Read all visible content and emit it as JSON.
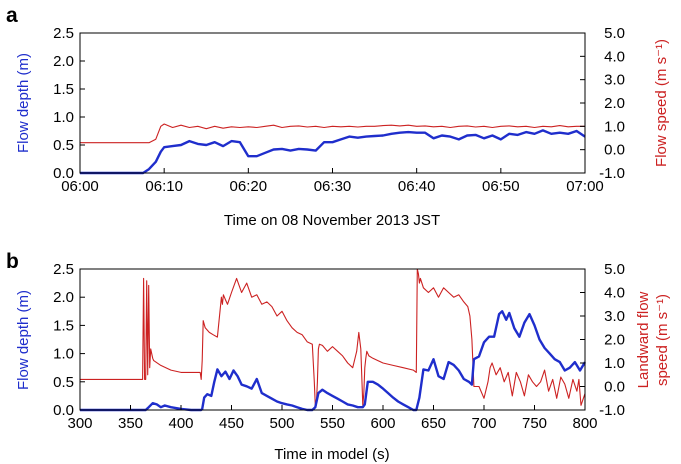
{
  "colors": {
    "depth": "#1f2ecc",
    "speed": "#cc2222",
    "axis": "#000000"
  },
  "chart_data": [
    {
      "panel": "a",
      "type": "line",
      "xlabel": "Time on 08 November 2013 JST",
      "ylabel_left": "Flow depth (m)",
      "ylabel_right": "Flow speed (m s⁻¹)",
      "x_ticks": [
        "06:00",
        "06:10",
        "06:20",
        "06:30",
        "06:40",
        "06:50",
        "07:00"
      ],
      "xlim": [
        0,
        60
      ],
      "ylim_left": [
        0,
        2.5
      ],
      "ylim_right": [
        -1.0,
        5.0
      ],
      "yticks_left": [
        "0.0",
        "0.5",
        "1.0",
        "1.5",
        "2.0",
        "2.5"
      ],
      "yticks_right": [
        "-1.0",
        "0.0",
        "1.0",
        "2.0",
        "3.0",
        "4.0",
        "5.0"
      ],
      "grid": false,
      "series": [
        {
          "axis": "left",
          "color": "#1f2ecc",
          "x": [
            0,
            7.5,
            8.2,
            9.0,
            9.6,
            10.0,
            11.0,
            12.0,
            13.0,
            14.0,
            15.0,
            16.0,
            17.0,
            18.0,
            19.0,
            20.0,
            21.0,
            22.0,
            23.0,
            24.0,
            25.0,
            26.0,
            27.0,
            28.0,
            29.0,
            30.0,
            31.0,
            32.0,
            33.0,
            34.0,
            35.0,
            36.0,
            37.0,
            38.0,
            39.0,
            40.0,
            41.0,
            42.0,
            43.0,
            44.0,
            45.0,
            46.0,
            47.0,
            48.0,
            49.0,
            50.0,
            51.0,
            52.0,
            53.0,
            54.0,
            55.0,
            56.0,
            57.0,
            58.0,
            59.0,
            60.0
          ],
          "y": [
            0.0,
            0.0,
            0.07,
            0.2,
            0.38,
            0.46,
            0.48,
            0.5,
            0.57,
            0.52,
            0.5,
            0.55,
            0.48,
            0.57,
            0.55,
            0.3,
            0.3,
            0.36,
            0.42,
            0.43,
            0.4,
            0.43,
            0.42,
            0.4,
            0.55,
            0.55,
            0.6,
            0.65,
            0.63,
            0.65,
            0.66,
            0.67,
            0.7,
            0.72,
            0.73,
            0.72,
            0.72,
            0.62,
            0.67,
            0.65,
            0.6,
            0.67,
            0.68,
            0.62,
            0.67,
            0.6,
            0.7,
            0.68,
            0.73,
            0.7,
            0.76,
            0.7,
            0.72,
            0.7,
            0.75,
            0.65
          ]
        },
        {
          "axis": "right",
          "color": "#cc2222",
          "x": [
            0,
            7.5,
            8.2,
            9.0,
            9.6,
            10.0,
            11.0,
            12.0,
            13.0,
            14.0,
            15.0,
            16.0,
            17.0,
            18.0,
            19.0,
            20.0,
            21.0,
            22.0,
            23.0,
            24.0,
            25.0,
            26.0,
            27.0,
            28.0,
            29.0,
            30.0,
            31.0,
            32.0,
            33.0,
            34.0,
            35.0,
            36.0,
            37.0,
            38.0,
            39.0,
            40.0,
            41.0,
            42.0,
            43.0,
            44.0,
            45.0,
            46.0,
            47.0,
            48.0,
            49.0,
            50.0,
            51.0,
            52.0,
            53.0,
            54.0,
            55.0,
            56.0,
            57.0,
            58.0,
            59.0,
            60.0
          ],
          "y": [
            0.3,
            0.3,
            0.3,
            0.45,
            1.0,
            1.1,
            0.95,
            1.05,
            0.95,
            1.0,
            0.9,
            1.0,
            0.92,
            0.98,
            0.95,
            0.98,
            0.95,
            1.0,
            1.05,
            0.95,
            1.0,
            1.02,
            0.97,
            1.0,
            0.95,
            1.0,
            0.98,
            1.0,
            0.97,
            1.0,
            1.0,
            1.03,
            1.05,
            1.02,
            1.05,
            1.0,
            1.02,
            0.98,
            1.0,
            0.95,
            1.0,
            1.02,
            0.97,
            1.0,
            0.95,
            1.0,
            1.02,
            0.98,
            1.0,
            0.95,
            1.0,
            0.98,
            1.03,
            0.98,
            1.0,
            1.0
          ]
        }
      ]
    },
    {
      "panel": "b",
      "type": "line",
      "xlabel": "Time in model (s)",
      "ylabel_left": "Flow depth (m)",
      "ylabel_right": [
        "Landward flow",
        "speed (m s⁻¹)"
      ],
      "x_ticks": [
        "300",
        "350",
        "400",
        "450",
        "500",
        "550",
        "600",
        "650",
        "700",
        "750",
        "800"
      ],
      "xlim": [
        300,
        800
      ],
      "ylim_left": [
        0,
        2.5
      ],
      "ylim_right": [
        -1.0,
        5.0
      ],
      "yticks_left": [
        "0.0",
        "0.5",
        "1.0",
        "1.5",
        "2.0",
        "2.5"
      ],
      "yticks_right": [
        "-1.0",
        "0.0",
        "1.0",
        "2.0",
        "3.0",
        "4.0",
        "5.0"
      ],
      "grid": false,
      "series": [
        {
          "axis": "left",
          "color": "#1f2ecc",
          "x": [
            300,
            365,
            368,
            372,
            376,
            380,
            384,
            390,
            400,
            410,
            420,
            421,
            423,
            426,
            430,
            433,
            436,
            440,
            444,
            448,
            452,
            456,
            460,
            465,
            470,
            475,
            480,
            485,
            490,
            495,
            500,
            505,
            510,
            515,
            520,
            525,
            530,
            533,
            536,
            540,
            545,
            550,
            555,
            560,
            565,
            570,
            575,
            580,
            582,
            585,
            590,
            595,
            600,
            605,
            610,
            615,
            620,
            625,
            630,
            633,
            636,
            640,
            645,
            650,
            655,
            660,
            665,
            670,
            675,
            680,
            685,
            688,
            690,
            695,
            700,
            705,
            710,
            715,
            718,
            722,
            725,
            730,
            735,
            740,
            745,
            750,
            755,
            760,
            765,
            770,
            775,
            780,
            785,
            790,
            795,
            800
          ],
          "y": [
            0.0,
            0.0,
            0.05,
            0.12,
            0.1,
            0.05,
            0.08,
            0.05,
            0.02,
            0.0,
            0.0,
            0.02,
            0.22,
            0.28,
            0.25,
            0.5,
            0.72,
            0.6,
            0.68,
            0.55,
            0.7,
            0.6,
            0.45,
            0.42,
            0.38,
            0.55,
            0.3,
            0.25,
            0.2,
            0.15,
            0.12,
            0.1,
            0.08,
            0.05,
            0.02,
            0.0,
            0.0,
            0.05,
            0.3,
            0.36,
            0.3,
            0.25,
            0.2,
            0.15,
            0.1,
            0.08,
            0.05,
            0.05,
            0.1,
            0.5,
            0.5,
            0.45,
            0.38,
            0.3,
            0.22,
            0.15,
            0.1,
            0.05,
            0.0,
            0.0,
            0.22,
            0.72,
            0.7,
            0.9,
            0.6,
            0.55,
            0.85,
            0.8,
            0.7,
            0.55,
            0.5,
            0.45,
            0.9,
            0.95,
            1.2,
            1.3,
            1.3,
            1.7,
            1.75,
            1.6,
            1.72,
            1.45,
            1.3,
            1.55,
            1.7,
            1.5,
            1.25,
            1.1,
            1.0,
            0.9,
            0.85,
            0.7,
            0.75,
            0.85,
            0.7,
            0.85
          ]
        },
        {
          "axis": "right",
          "color": "#cc2222",
          "x": [
            300,
            362,
            363,
            364,
            365,
            366,
            367,
            368,
            369,
            370,
            371,
            372,
            373,
            380,
            390,
            400,
            410,
            419,
            420,
            421,
            422,
            424,
            428,
            432,
            436,
            440,
            441,
            442,
            444,
            446,
            450,
            455,
            460,
            465,
            470,
            475,
            480,
            485,
            490,
            495,
            500,
            505,
            510,
            515,
            520,
            525,
            530,
            531,
            532,
            533,
            534,
            535,
            536,
            537,
            540,
            545,
            550,
            555,
            560,
            565,
            570,
            574,
            576,
            578,
            580,
            581,
            582,
            583,
            584,
            586,
            590,
            595,
            600,
            610,
            620,
            630,
            633,
            634,
            635,
            636,
            637,
            640,
            645,
            650,
            655,
            660,
            665,
            670,
            675,
            680,
            684,
            686,
            688,
            690,
            695,
            700,
            704,
            706,
            708,
            712,
            716,
            720,
            724,
            728,
            732,
            736,
            740,
            744,
            748,
            752,
            756,
            760,
            764,
            768,
            772,
            776,
            780,
            784,
            788,
            792,
            794,
            796,
            800
          ],
          "y": [
            0.3,
            0.3,
            4.6,
            0.3,
            0.3,
            4.5,
            0.5,
            4.3,
            0.8,
            1.6,
            1.4,
            1.2,
            1.1,
            0.9,
            0.7,
            0.6,
            0.6,
            0.6,
            0.3,
            1.1,
            2.8,
            2.5,
            2.3,
            2.2,
            2.1,
            3.8,
            3.5,
            3.9,
            3.7,
            3.5,
            4.0,
            4.6,
            4.0,
            4.4,
            3.8,
            3.9,
            3.5,
            3.6,
            3.4,
            3.0,
            3.2,
            2.8,
            2.5,
            2.3,
            2.2,
            1.9,
            1.8,
            1.0,
            0.2,
            -0.8,
            -0.8,
            0.2,
            1.6,
            1.8,
            1.75,
            1.5,
            1.7,
            1.5,
            1.3,
            1.0,
            0.8,
            1.5,
            2.3,
            1.6,
            -0.8,
            -0.3,
            0.8,
            1.2,
            1.5,
            1.3,
            1.2,
            1.1,
            1.0,
            0.9,
            0.8,
            0.7,
            0.6,
            5.0,
            4.8,
            4.4,
            4.6,
            4.2,
            4.0,
            4.2,
            3.8,
            4.2,
            4.0,
            3.8,
            3.9,
            3.6,
            3.4,
            3.0,
            2.0,
            0.0,
            0.0,
            -0.5,
            0.2,
            0.8,
            1.0,
            0.5,
            0.8,
            0.2,
            0.6,
            -0.4,
            0.6,
            0.2,
            -0.4,
            0.5,
            0.2,
            0.0,
            0.2,
            0.7,
            -0.2,
            0.3,
            -0.5,
            0.4,
            0.1,
            -0.5,
            0.3,
            -0.2,
            0.3,
            -0.8,
            -0.3
          ]
        }
      ]
    }
  ]
}
